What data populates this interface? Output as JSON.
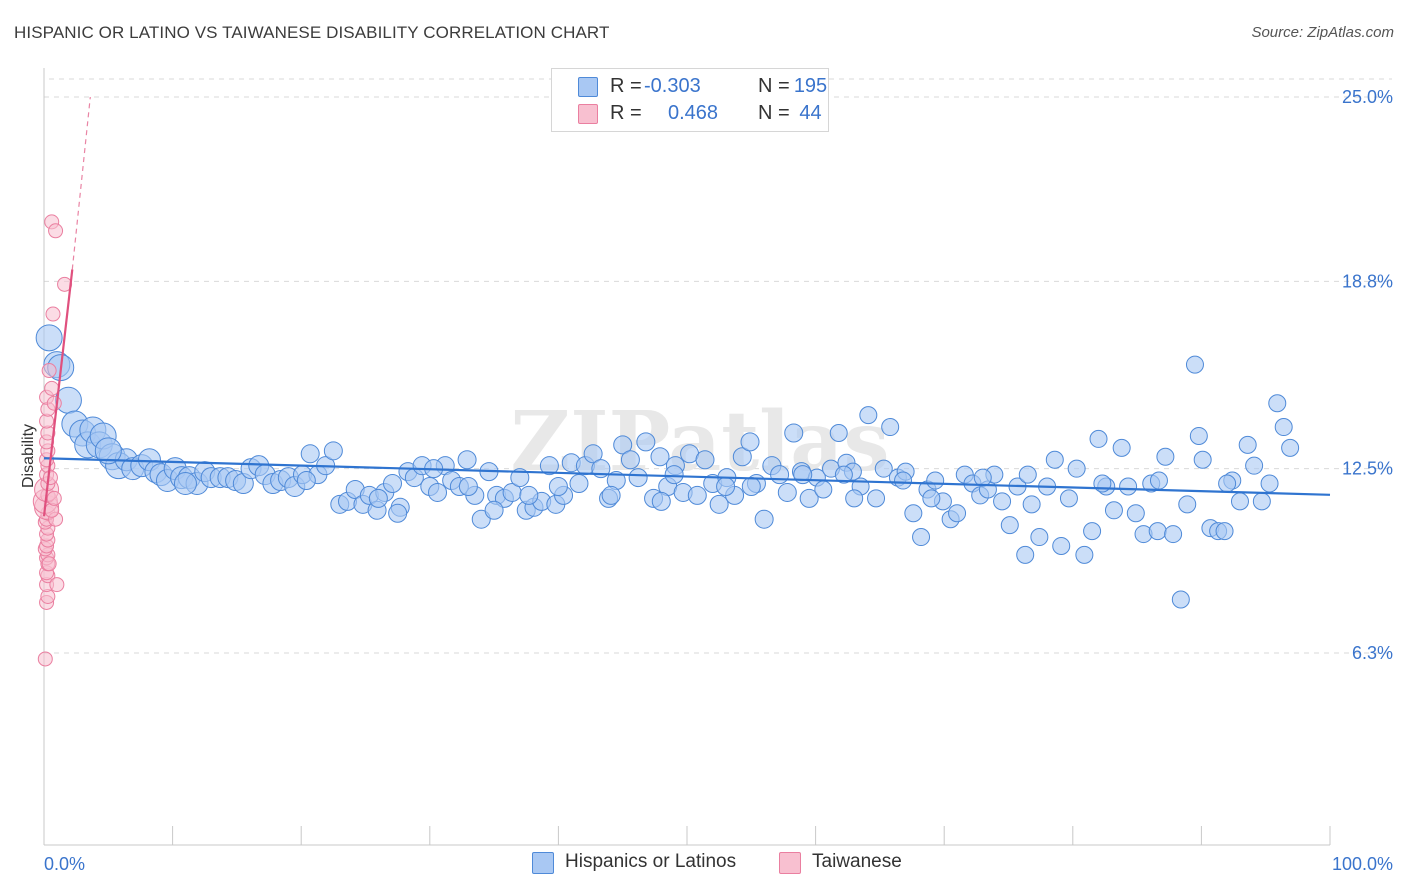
{
  "header": {
    "title": "HISPANIC OR LATINO VS TAIWANESE DISABILITY CORRELATION CHART",
    "source": "Source: ZipAtlas.com"
  },
  "legend_top": {
    "rows": [
      {
        "r_label": "R =",
        "r_value": "-0.303",
        "n_label": "N =",
        "n_value": "195"
      },
      {
        "r_label": "R =",
        "r_value": "0.468",
        "n_label": "N =",
        "n_value": "44"
      }
    ]
  },
  "legend_bottom": {
    "items": [
      {
        "label": "Hispanics or Latinos"
      },
      {
        "label": "Taiwanese"
      }
    ]
  },
  "watermark": "ZIPatlas",
  "colors": {
    "blue_fill": "#a9c8f3",
    "blue_stroke": "#4f8ad8",
    "blue_line": "#2f74d0",
    "pink_fill": "#f8c0d0",
    "pink_stroke": "#ea7fa0",
    "pink_line": "#e0507e",
    "tick_label": "#3a74cc",
    "grid": "#d9d9d9"
  },
  "chart_data": {
    "type": "scatter",
    "title": "HISPANIC OR LATINO VS TAIWANESE DISABILITY CORRELATION CHART",
    "xlabel": "",
    "ylabel": "Disability",
    "xlim": [
      0,
      100
    ],
    "ylim": [
      0,
      26.2
    ],
    "x_tick_labels": [
      "0.0%",
      "100.0%"
    ],
    "y_ticks": [
      6.3,
      12.5,
      18.8,
      25.0
    ],
    "y_tick_labels": [
      "6.3%",
      "12.5%",
      "18.8%",
      "25.0%"
    ],
    "grid": true,
    "legend_position": "top-center",
    "series": [
      {
        "name": "Hispanics or Latinos",
        "r": -0.303,
        "n": 195,
        "trend": {
          "x": [
            0,
            100
          ],
          "y": [
            12.85,
            11.62
          ]
        },
        "points": [
          [
            0.4,
            16.9
          ],
          [
            1.0,
            16.0
          ],
          [
            1.3,
            15.9
          ],
          [
            1.9,
            14.8
          ],
          [
            2.4,
            14.0
          ],
          [
            3.0,
            13.7
          ],
          [
            3.4,
            13.3
          ],
          [
            3.8,
            13.8
          ],
          [
            4.3,
            13.3
          ],
          [
            4.6,
            13.6
          ],
          [
            5.3,
            12.9
          ],
          [
            5.8,
            12.6
          ],
          [
            6.4,
            12.8
          ],
          [
            6.9,
            12.5
          ],
          [
            7.6,
            12.6
          ],
          [
            8.2,
            12.8
          ],
          [
            8.7,
            12.4
          ],
          [
            9.1,
            12.3
          ],
          [
            9.6,
            12.1
          ],
          [
            10.2,
            12.5
          ],
          [
            10.7,
            12.2
          ],
          [
            11.3,
            12.2
          ],
          [
            11.9,
            12.0
          ],
          [
            12.5,
            12.4
          ],
          [
            13.0,
            12.2
          ],
          [
            13.7,
            12.2
          ],
          [
            14.3,
            12.2
          ],
          [
            14.9,
            12.1
          ],
          [
            15.5,
            12.0
          ],
          [
            16.1,
            12.5
          ],
          [
            16.7,
            12.6
          ],
          [
            17.2,
            12.3
          ],
          [
            17.8,
            12.0
          ],
          [
            18.4,
            12.1
          ],
          [
            19.0,
            12.2
          ],
          [
            19.5,
            11.9
          ],
          [
            20.1,
            12.3
          ],
          [
            20.7,
            13.0
          ],
          [
            21.3,
            12.3
          ],
          [
            21.9,
            12.6
          ],
          [
            22.5,
            13.1
          ],
          [
            23.0,
            11.3
          ],
          [
            23.6,
            11.4
          ],
          [
            24.2,
            11.8
          ],
          [
            24.8,
            11.3
          ],
          [
            25.3,
            11.6
          ],
          [
            25.9,
            11.1
          ],
          [
            26.5,
            11.7
          ],
          [
            27.1,
            12.0
          ],
          [
            27.7,
            11.2
          ],
          [
            28.3,
            12.4
          ],
          [
            28.8,
            12.2
          ],
          [
            29.4,
            12.6
          ],
          [
            30.0,
            11.9
          ],
          [
            30.6,
            11.7
          ],
          [
            31.2,
            12.6
          ],
          [
            31.7,
            12.1
          ],
          [
            32.3,
            11.9
          ],
          [
            32.9,
            12.8
          ],
          [
            33.5,
            11.6
          ],
          [
            34.0,
            10.8
          ],
          [
            34.6,
            12.4
          ],
          [
            35.2,
            11.6
          ],
          [
            35.8,
            11.5
          ],
          [
            36.4,
            11.7
          ],
          [
            37.0,
            12.2
          ],
          [
            37.5,
            11.1
          ],
          [
            38.1,
            11.2
          ],
          [
            38.7,
            11.4
          ],
          [
            39.3,
            12.6
          ],
          [
            39.8,
            11.3
          ],
          [
            40.4,
            11.6
          ],
          [
            41.0,
            12.7
          ],
          [
            41.6,
            12.0
          ],
          [
            42.1,
            12.6
          ],
          [
            42.7,
            13.0
          ],
          [
            43.3,
            12.5
          ],
          [
            43.9,
            11.5
          ],
          [
            44.5,
            12.1
          ],
          [
            45.0,
            13.3
          ],
          [
            45.6,
            12.8
          ],
          [
            46.2,
            12.2
          ],
          [
            46.8,
            13.4
          ],
          [
            47.4,
            11.5
          ],
          [
            47.9,
            12.9
          ],
          [
            48.5,
            11.9
          ],
          [
            49.1,
            12.6
          ],
          [
            49.7,
            11.7
          ],
          [
            50.2,
            13.0
          ],
          [
            50.8,
            11.6
          ],
          [
            51.4,
            12.8
          ],
          [
            52.0,
            12.0
          ],
          [
            52.5,
            11.3
          ],
          [
            53.1,
            12.2
          ],
          [
            53.7,
            11.6
          ],
          [
            54.3,
            12.9
          ],
          [
            54.9,
            13.4
          ],
          [
            55.4,
            12.0
          ],
          [
            56.0,
            10.8
          ],
          [
            56.6,
            12.6
          ],
          [
            57.2,
            12.3
          ],
          [
            57.8,
            11.7
          ],
          [
            58.3,
            13.7
          ],
          [
            58.9,
            12.4
          ],
          [
            59.5,
            11.5
          ],
          [
            60.1,
            12.2
          ],
          [
            60.6,
            11.8
          ],
          [
            61.2,
            12.5
          ],
          [
            61.8,
            13.7
          ],
          [
            62.4,
            12.7
          ],
          [
            62.9,
            12.4
          ],
          [
            63.5,
            11.9
          ],
          [
            64.1,
            14.3
          ],
          [
            64.7,
            11.5
          ],
          [
            65.3,
            12.5
          ],
          [
            65.8,
            13.9
          ],
          [
            66.4,
            12.2
          ],
          [
            67.0,
            12.4
          ],
          [
            67.6,
            11.0
          ],
          [
            68.2,
            10.2
          ],
          [
            68.7,
            11.8
          ],
          [
            69.3,
            12.1
          ],
          [
            69.9,
            11.4
          ],
          [
            70.5,
            10.8
          ],
          [
            71.0,
            11.0
          ],
          [
            71.6,
            12.3
          ],
          [
            72.2,
            12.0
          ],
          [
            72.8,
            11.6
          ],
          [
            73.4,
            11.8
          ],
          [
            73.9,
            12.3
          ],
          [
            74.5,
            11.4
          ],
          [
            75.1,
            10.6
          ],
          [
            75.7,
            11.9
          ],
          [
            76.3,
            9.6
          ],
          [
            76.8,
            11.3
          ],
          [
            77.4,
            10.2
          ],
          [
            78.0,
            11.9
          ],
          [
            78.6,
            12.8
          ],
          [
            79.1,
            9.9
          ],
          [
            79.7,
            11.5
          ],
          [
            80.3,
            12.5
          ],
          [
            80.9,
            9.6
          ],
          [
            81.5,
            10.4
          ],
          [
            82.0,
            13.5
          ],
          [
            82.6,
            11.9
          ],
          [
            83.2,
            11.1
          ],
          [
            83.8,
            13.2
          ],
          [
            84.3,
            11.9
          ],
          [
            84.9,
            11.0
          ],
          [
            85.5,
            10.3
          ],
          [
            86.1,
            12.0
          ],
          [
            86.6,
            10.4
          ],
          [
            87.2,
            12.9
          ],
          [
            87.8,
            10.3
          ],
          [
            88.4,
            8.1
          ],
          [
            88.9,
            11.3
          ],
          [
            89.5,
            16.0
          ],
          [
            89.8,
            13.6
          ],
          [
            90.1,
            12.8
          ],
          [
            90.7,
            10.5
          ],
          [
            91.3,
            10.4
          ],
          [
            91.8,
            10.4
          ],
          [
            92.4,
            12.1
          ],
          [
            93.0,
            11.4
          ],
          [
            93.6,
            13.3
          ],
          [
            94.1,
            12.6
          ],
          [
            94.7,
            11.4
          ],
          [
            95.3,
            12.0
          ],
          [
            95.9,
            14.7
          ],
          [
            96.4,
            13.9
          ],
          [
            96.9,
            13.2
          ],
          [
            5.0,
            13.1
          ],
          [
            11.0,
            12.0
          ],
          [
            20.4,
            12.1
          ],
          [
            26.0,
            11.5
          ],
          [
            30.3,
            12.5
          ],
          [
            37.7,
            11.6
          ],
          [
            44.1,
            11.6
          ],
          [
            49.0,
            12.3
          ],
          [
            55.0,
            11.9
          ],
          [
            59.0,
            12.3
          ],
          [
            62.2,
            12.3
          ],
          [
            66.8,
            12.1
          ],
          [
            73.0,
            12.2
          ],
          [
            76.5,
            12.3
          ],
          [
            82.3,
            12.0
          ],
          [
            86.7,
            12.1
          ],
          [
            92.0,
            12.0
          ],
          [
            27.5,
            11.0
          ],
          [
            35.0,
            11.1
          ],
          [
            40.0,
            11.9
          ],
          [
            53.0,
            11.9
          ],
          [
            63.0,
            11.5
          ],
          [
            69.0,
            11.5
          ],
          [
            33.0,
            11.9
          ],
          [
            48.0,
            11.4
          ]
        ]
      },
      {
        "name": "Taiwanese",
        "r": 0.468,
        "n": 44,
        "trend": {
          "x": [
            0,
            2.2
          ],
          "y": [
            10.9,
            19.2
          ],
          "dashed_extension_y_at_x_3.6": 25.0
        },
        "points": [
          [
            0.1,
            6.1
          ],
          [
            0.2,
            8.0
          ],
          [
            0.3,
            8.2
          ],
          [
            0.2,
            8.6
          ],
          [
            0.3,
            8.9
          ],
          [
            0.2,
            9.0
          ],
          [
            0.3,
            9.3
          ],
          [
            0.2,
            9.5
          ],
          [
            0.3,
            9.6
          ],
          [
            0.1,
            9.8
          ],
          [
            0.2,
            9.9
          ],
          [
            0.3,
            10.1
          ],
          [
            0.2,
            10.3
          ],
          [
            0.3,
            10.5
          ],
          [
            0.1,
            10.7
          ],
          [
            0.2,
            10.8
          ],
          [
            0.3,
            11.0
          ],
          [
            0.2,
            11.2
          ],
          [
            0.1,
            11.4
          ],
          [
            0.3,
            11.6
          ],
          [
            0.2,
            11.8
          ],
          [
            0.3,
            12.0
          ],
          [
            0.2,
            12.3
          ],
          [
            0.3,
            12.6
          ],
          [
            0.2,
            12.8
          ],
          [
            0.3,
            13.1
          ],
          [
            0.2,
            13.4
          ],
          [
            0.3,
            13.7
          ],
          [
            0.2,
            14.1
          ],
          [
            0.3,
            14.5
          ],
          [
            0.2,
            14.9
          ],
          [
            0.6,
            15.2
          ],
          [
            0.7,
            17.7
          ],
          [
            0.6,
            20.8
          ],
          [
            0.9,
            20.5
          ],
          [
            1.6,
            18.7
          ],
          [
            0.8,
            14.7
          ],
          [
            0.4,
            15.8
          ],
          [
            0.9,
            10.8
          ],
          [
            1.0,
            8.6
          ],
          [
            0.5,
            12.2
          ],
          [
            0.6,
            11.1
          ],
          [
            0.4,
            9.3
          ],
          [
            0.8,
            11.5
          ]
        ]
      }
    ]
  }
}
